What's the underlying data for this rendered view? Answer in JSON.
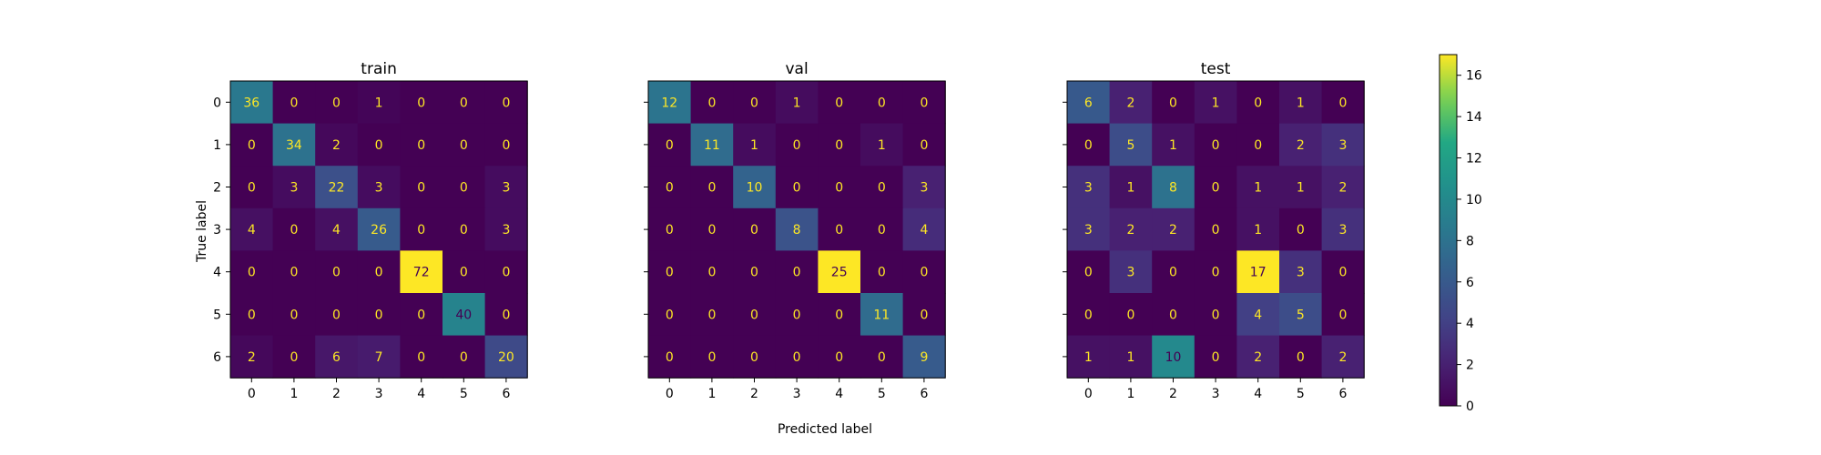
{
  "chart_data": {
    "type": "heatmap",
    "xlabel": "Predicted label",
    "ylabel": "True label",
    "x_ticks": [
      "0",
      "1",
      "2",
      "3",
      "4",
      "5",
      "6"
    ],
    "y_ticks": [
      "0",
      "1",
      "2",
      "3",
      "4",
      "5",
      "6"
    ],
    "colormap": "viridis",
    "colorbar": {
      "range": [
        0,
        17
      ],
      "ticks": [
        "0",
        "2",
        "4",
        "6",
        "8",
        "10",
        "12",
        "14",
        "16"
      ]
    },
    "colors": {
      "low_text": "#fde725",
      "high_text": "#440154"
    },
    "panels": [
      {
        "title": "train",
        "matrix": [
          [
            36,
            0,
            0,
            1,
            0,
            0,
            0
          ],
          [
            0,
            34,
            2,
            0,
            0,
            0,
            0
          ],
          [
            0,
            3,
            22,
            3,
            0,
            0,
            3
          ],
          [
            4,
            0,
            4,
            26,
            0,
            0,
            3
          ],
          [
            0,
            0,
            0,
            0,
            72,
            0,
            0
          ],
          [
            0,
            0,
            0,
            0,
            0,
            40,
            0
          ],
          [
            2,
            0,
            6,
            7,
            0,
            0,
            20
          ]
        ]
      },
      {
        "title": "val",
        "matrix": [
          [
            12,
            0,
            0,
            1,
            0,
            0,
            0
          ],
          [
            0,
            11,
            1,
            0,
            0,
            1,
            0
          ],
          [
            0,
            0,
            10,
            0,
            0,
            0,
            3
          ],
          [
            0,
            0,
            0,
            8,
            0,
            0,
            4
          ],
          [
            0,
            0,
            0,
            0,
            25,
            0,
            0
          ],
          [
            0,
            0,
            0,
            0,
            0,
            11,
            0
          ],
          [
            0,
            0,
            0,
            0,
            0,
            0,
            9
          ]
        ]
      },
      {
        "title": "test",
        "matrix": [
          [
            6,
            2,
            0,
            1,
            0,
            1,
            0
          ],
          [
            0,
            5,
            1,
            0,
            0,
            2,
            3
          ],
          [
            3,
            1,
            8,
            0,
            1,
            1,
            2
          ],
          [
            3,
            2,
            2,
            0,
            1,
            0,
            3
          ],
          [
            0,
            3,
            0,
            0,
            17,
            3,
            0
          ],
          [
            0,
            0,
            0,
            0,
            4,
            5,
            0
          ],
          [
            1,
            1,
            10,
            0,
            2,
            0,
            2
          ]
        ]
      }
    ]
  }
}
